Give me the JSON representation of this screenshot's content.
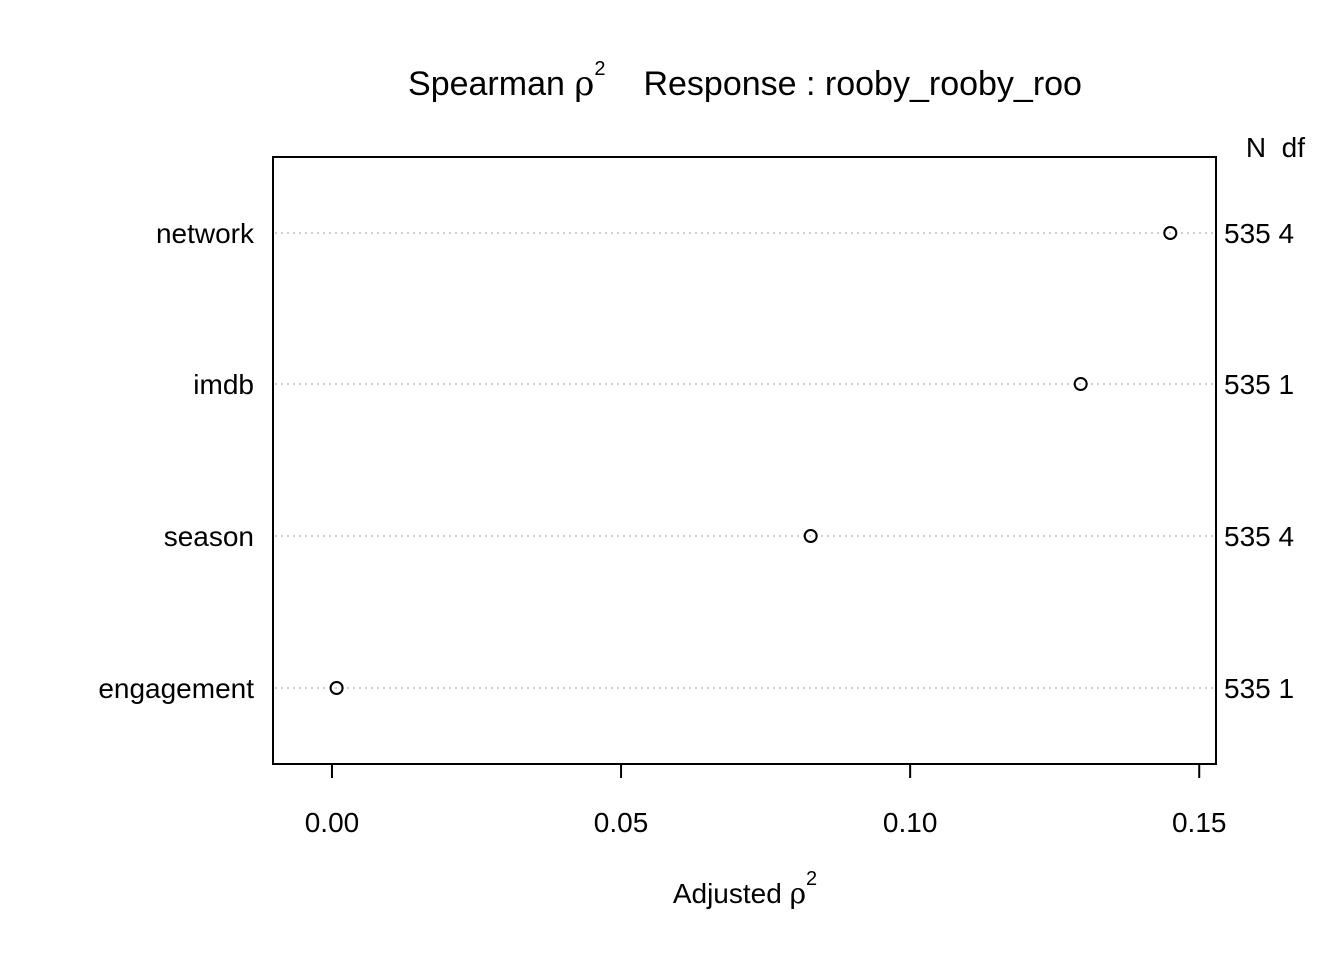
{
  "chart_data": {
    "type": "scatter",
    "subtype": "dotchart",
    "title": {
      "prefix": "Spearman ",
      "rho": "ρ",
      "exponent": "2",
      "response_label": "Response : rooby_rooby_roo"
    },
    "xlabel": {
      "prefix": "Adjusted ",
      "rho": "ρ",
      "exponent": "2"
    },
    "xlim": [
      -0.0102,
      0.1529
    ],
    "xticks": [
      {
        "value": 0.0,
        "label": "0.00"
      },
      {
        "value": 0.05,
        "label": "0.05"
      },
      {
        "value": 0.1,
        "label": "0.10"
      },
      {
        "value": 0.15,
        "label": "0.15"
      }
    ],
    "right_header": "N  df",
    "categories": [
      "network",
      "imdb",
      "season",
      "engagement"
    ],
    "series": [
      {
        "values": [
          0.145,
          0.1295,
          0.0828,
          0.0008
        ],
        "n_df_labels": [
          "535 4",
          "535 1",
          "535 4",
          "535 1"
        ]
      }
    ],
    "grid": "dotted horizontal reference lines",
    "marker": "open-circle"
  }
}
